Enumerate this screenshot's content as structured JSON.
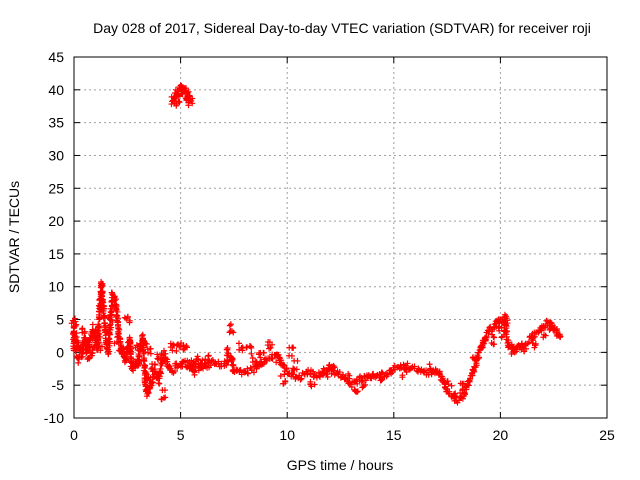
{
  "chart_data": {
    "type": "scatter",
    "title": "Day 028 of 2017, Sidereal Day-to-day VTEC variation (SDTVAR) for receiver roji",
    "xlabel": "GPS time / hours",
    "ylabel": "SDTVAR / TECUs",
    "xlim": [
      0,
      25
    ],
    "ylim": [
      -10,
      45
    ],
    "xticks": [
      0,
      5,
      10,
      15,
      20,
      25
    ],
    "yticks": [
      -10,
      -5,
      0,
      5,
      10,
      15,
      20,
      25,
      30,
      35,
      40,
      45
    ],
    "grid": true,
    "marker": "+",
    "color": "#ff0000",
    "series": [
      {
        "name": "SDTVAR",
        "trace": [
          [
            0.0,
            4.0
          ],
          [
            0.0,
            2.5
          ],
          [
            0.0,
            0.5
          ],
          [
            0.2,
            1.0
          ],
          [
            0.3,
            -0.2
          ],
          [
            0.4,
            0.5
          ],
          [
            0.5,
            2.0
          ],
          [
            0.6,
            0.0
          ],
          [
            0.7,
            1.5
          ],
          [
            0.8,
            2.5
          ],
          [
            0.9,
            3.2
          ],
          [
            1.0,
            2.0
          ],
          [
            1.1,
            0.5
          ],
          [
            1.2,
            6.0
          ],
          [
            1.25,
            9.0
          ],
          [
            1.3,
            10.5
          ],
          [
            1.4,
            6.0
          ],
          [
            1.5,
            2.0
          ],
          [
            1.6,
            0.0
          ],
          [
            1.7,
            4.0
          ],
          [
            1.8,
            9.0
          ],
          [
            1.9,
            8.5
          ],
          [
            2.0,
            6.0
          ],
          [
            2.1,
            3.0
          ],
          [
            2.2,
            1.0
          ],
          [
            2.4,
            -1.5
          ],
          [
            2.6,
            2.0
          ],
          [
            2.7,
            -2.5
          ],
          [
            3.0,
            -2.0
          ],
          [
            3.2,
            2.5
          ],
          [
            3.4,
            -6.5
          ],
          [
            3.6,
            -5.0
          ],
          [
            3.8,
            -3.0
          ],
          [
            4.0,
            -4.0
          ],
          [
            4.2,
            0.0
          ],
          [
            4.4,
            -2.0
          ],
          [
            4.6,
            -3.0
          ],
          [
            4.8,
            -2.0
          ],
          [
            5.0,
            -2.0
          ],
          [
            5.2,
            -1.5
          ],
          [
            5.5,
            -2.5
          ],
          [
            5.8,
            -1.0
          ],
          [
            6.0,
            -2.5
          ],
          [
            6.5,
            -1.5
          ],
          [
            7.0,
            -2.0
          ],
          [
            7.4,
            -0.5
          ],
          [
            7.5,
            -3.0
          ],
          [
            8.0,
            -3.0
          ],
          [
            8.5,
            -2.5
          ],
          [
            9.0,
            -1.0
          ],
          [
            9.5,
            -0.5
          ],
          [
            10.0,
            -3.0
          ],
          [
            10.5,
            -4.0
          ],
          [
            11.0,
            -3.0
          ],
          [
            11.5,
            -3.5
          ],
          [
            12.0,
            -2.0
          ],
          [
            12.5,
            -3.5
          ],
          [
            13.0,
            -5.0
          ],
          [
            13.5,
            -4.0
          ],
          [
            14.0,
            -3.5
          ],
          [
            14.5,
            -3.5
          ],
          [
            15.0,
            -2.5
          ],
          [
            15.5,
            -2.0
          ],
          [
            16.0,
            -2.5
          ],
          [
            16.5,
            -3.0
          ],
          [
            17.0,
            -3.0
          ],
          [
            17.3,
            -4.0
          ],
          [
            17.5,
            -6.0
          ],
          [
            17.8,
            -6.5
          ],
          [
            18.0,
            -7.5
          ],
          [
            18.3,
            -6.5
          ],
          [
            18.6,
            -4.0
          ],
          [
            19.0,
            0.0
          ],
          [
            19.4,
            3.0
          ],
          [
            19.7,
            4.0
          ],
          [
            20.0,
            5.0
          ],
          [
            20.2,
            4.5
          ],
          [
            20.4,
            1.0
          ],
          [
            20.7,
            0.5
          ],
          [
            21.0,
            1.0
          ],
          [
            21.4,
            2.0
          ],
          [
            21.8,
            3.5
          ],
          [
            22.2,
            4.5
          ],
          [
            22.6,
            3.5
          ],
          [
            22.8,
            2.5
          ]
        ],
        "clusters": [
          [
            0.0,
            4.5
          ],
          [
            0.0,
            3.0
          ],
          [
            0.1,
            1.0
          ],
          [
            0.2,
            -1.0
          ],
          [
            0.4,
            0.0
          ],
          [
            0.5,
            3.0
          ],
          [
            0.6,
            1.0
          ],
          [
            0.7,
            -0.5
          ],
          [
            0.8,
            1.5
          ],
          [
            0.9,
            0.0
          ],
          [
            1.0,
            3.5
          ],
          [
            1.1,
            2.0
          ],
          [
            1.2,
            1.0
          ],
          [
            1.3,
            7.5
          ],
          [
            1.7,
            5.0
          ],
          [
            2.0,
            2.0
          ],
          [
            2.2,
            0.5
          ],
          [
            2.5,
            5.0
          ],
          [
            2.6,
            0.5
          ],
          [
            2.8,
            -2.0
          ],
          [
            3.0,
            1.0
          ],
          [
            3.1,
            -1.0
          ],
          [
            3.3,
            2.0
          ],
          [
            3.5,
            -4.0
          ],
          [
            3.5,
            0.5
          ],
          [
            3.7,
            -2.5
          ],
          [
            3.9,
            -4.5
          ],
          [
            4.0,
            -1.0
          ],
          [
            4.2,
            -6.5
          ],
          [
            4.6,
            1.0
          ],
          [
            4.9,
            1.0
          ],
          [
            5.2,
            0.5
          ],
          [
            5.4,
            -1.5
          ],
          [
            5.6,
            -3.0
          ],
          [
            5.9,
            -2.0
          ],
          [
            6.2,
            -1.0
          ],
          [
            7.2,
            0.0
          ],
          [
            7.4,
            3.5
          ],
          [
            7.8,
            1.0
          ],
          [
            8.2,
            0.5
          ],
          [
            8.5,
            -1.5
          ],
          [
            8.8,
            0.0
          ],
          [
            9.2,
            1.0
          ],
          [
            9.6,
            -1.0
          ],
          [
            9.8,
            -4.0
          ],
          [
            10.2,
            0.0
          ],
          [
            10.4,
            -2.0
          ],
          [
            11.2,
            -4.5
          ],
          [
            11.8,
            -3.0
          ],
          [
            12.2,
            -3.0
          ],
          [
            12.8,
            -4.0
          ],
          [
            13.2,
            -5.5
          ],
          [
            13.6,
            -5.0
          ],
          [
            14.4,
            -3.5
          ],
          [
            15.5,
            -3.0
          ],
          [
            16.8,
            -2.5
          ],
          [
            17.2,
            -3.5
          ],
          [
            17.6,
            -5.0
          ],
          [
            17.9,
            -7.0
          ],
          [
            18.2,
            -5.5
          ],
          [
            18.8,
            -1.5
          ],
          [
            19.2,
            1.5
          ],
          [
            19.6,
            2.0
          ],
          [
            19.9,
            4.0
          ],
          [
            20.1,
            3.0
          ],
          [
            20.3,
            5.0
          ],
          [
            20.6,
            0.0
          ],
          [
            21.1,
            0.5
          ],
          [
            21.6,
            1.5
          ],
          [
            22.0,
            3.0
          ],
          [
            22.4,
            4.0
          ],
          [
            22.7,
            3.0
          ]
        ]
      },
      {
        "name": "SDTVAR (outlier arc)",
        "trace": [
          [
            4.6,
            38.2
          ],
          [
            4.7,
            39.0
          ],
          [
            4.8,
            39.6
          ],
          [
            4.9,
            40.0
          ],
          [
            5.0,
            40.3
          ],
          [
            5.1,
            40.4
          ],
          [
            5.2,
            40.1
          ],
          [
            5.3,
            39.6
          ],
          [
            5.4,
            38.9
          ],
          [
            5.5,
            38.3
          ]
        ],
        "clusters": [
          [
            4.7,
            38.3
          ],
          [
            4.85,
            38.9
          ],
          [
            5.0,
            39.7
          ],
          [
            5.15,
            39.5
          ],
          [
            5.3,
            38.7
          ],
          [
            5.45,
            38.1
          ]
        ]
      }
    ]
  }
}
